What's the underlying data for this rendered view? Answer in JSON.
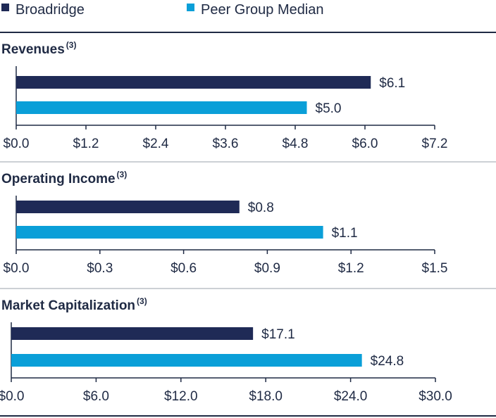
{
  "legend": [
    {
      "label": "Broadridge",
      "color": "#1f2a56"
    },
    {
      "label": "Peer Group Median",
      "color": "#0a9fd8"
    }
  ],
  "chart_data": [
    {
      "type": "bar",
      "orientation": "horizontal",
      "title": "Revenues",
      "superscript": "(3)",
      "series": [
        {
          "name": "Broadridge",
          "value": 6.1,
          "label": "$6.1"
        },
        {
          "name": "Peer Group Median",
          "value": 5.0,
          "label": "$5.0"
        }
      ],
      "xlim": [
        0,
        7.2
      ],
      "ticks": [
        0,
        1.2,
        2.4,
        3.6,
        4.8,
        6.0,
        7.2
      ],
      "tick_labels": [
        "$0.0",
        "$1.2",
        "$2.4",
        "$3.6",
        "$4.8",
        "$6.0",
        "$7.2"
      ]
    },
    {
      "type": "bar",
      "orientation": "horizontal",
      "title": "Operating Income",
      "superscript": "(3)",
      "series": [
        {
          "name": "Broadridge",
          "value": 0.8,
          "label": "$0.8"
        },
        {
          "name": "Peer Group Median",
          "value": 1.1,
          "label": "$1.1"
        }
      ],
      "xlim": [
        0,
        1.5
      ],
      "ticks": [
        0,
        0.3,
        0.6,
        0.9,
        1.2,
        1.5
      ],
      "tick_labels": [
        "$0.0",
        "$0.3",
        "$0.6",
        "$0.9",
        "$1.2",
        "$1.5"
      ]
    },
    {
      "type": "bar",
      "orientation": "horizontal",
      "title": "Market Capitalization",
      "superscript": "(3)",
      "series": [
        {
          "name": "Broadridge",
          "value": 17.1,
          "label": "$17.1"
        },
        {
          "name": "Peer Group Median",
          "value": 24.8,
          "label": "$24.8"
        }
      ],
      "xlim": [
        0,
        30
      ],
      "ticks": [
        0,
        6,
        12,
        18,
        24,
        30
      ],
      "tick_labels": [
        "$0.0",
        "$6.0",
        "$12.0",
        "$18.0",
        "$24.0",
        "$30.0"
      ]
    }
  ]
}
